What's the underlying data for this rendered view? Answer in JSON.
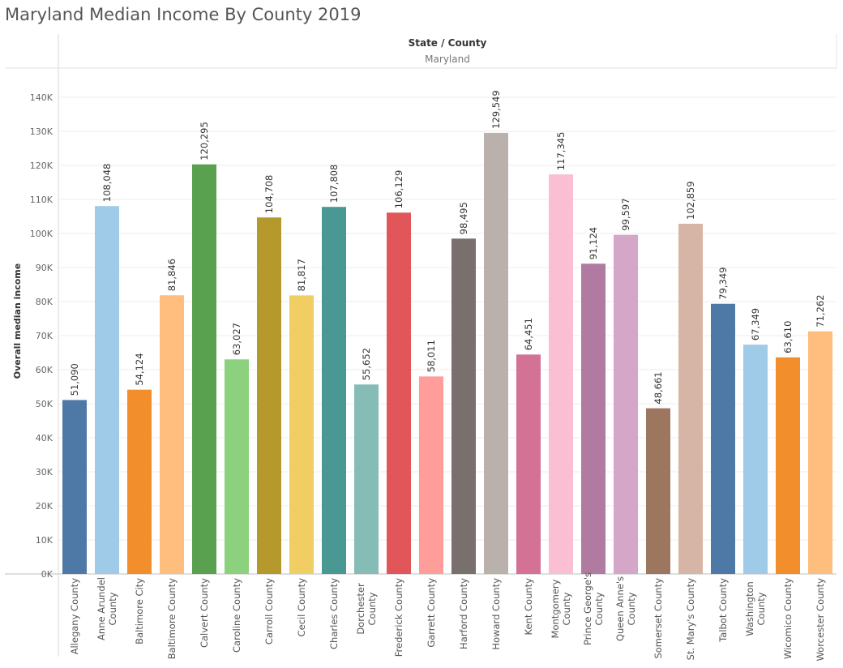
{
  "title": "Maryland Median Income By County 2019",
  "chart_data": {
    "type": "bar",
    "header_label": "State / County",
    "header_value": "Maryland",
    "ylabel": "Overall median income",
    "ylim": [
      0,
      140000
    ],
    "yticks": [
      0,
      10000,
      20000,
      30000,
      40000,
      50000,
      60000,
      70000,
      80000,
      90000,
      100000,
      110000,
      120000,
      130000,
      140000
    ],
    "ytick_labels": [
      "0K",
      "10K",
      "20K",
      "30K",
      "40K",
      "50K",
      "60K",
      "70K",
      "80K",
      "90K",
      "100K",
      "110K",
      "120K",
      "130K",
      "140K"
    ],
    "grid": true,
    "categories": [
      "Allegany County",
      "Anne Arundel County",
      "Baltimore City",
      "Baltimore County",
      "Calvert County",
      "Caroline County",
      "Carroll County",
      "Cecil County",
      "Charles County",
      "Dorchester County",
      "Frederick County",
      "Garrett County",
      "Harford County",
      "Howard County",
      "Kent County",
      "Montgomery County",
      "Prince George's County",
      "Queen Anne's County",
      "Somerset County",
      "St. Mary's County",
      "Talbot County",
      "Washington County",
      "Wicomico County",
      "Worcester County"
    ],
    "category_label_lines": [
      [
        "Allegany County"
      ],
      [
        "Anne Arundel",
        "County"
      ],
      [
        "Baltimore City"
      ],
      [
        "Baltimore County"
      ],
      [
        "Calvert County"
      ],
      [
        "Caroline County"
      ],
      [
        "Carroll County"
      ],
      [
        "Cecil County"
      ],
      [
        "Charles County"
      ],
      [
        "Dorchester",
        "County"
      ],
      [
        "Frederick County"
      ],
      [
        "Garrett County"
      ],
      [
        "Harford County"
      ],
      [
        "Howard County"
      ],
      [
        "Kent County"
      ],
      [
        "Montgomery",
        "County"
      ],
      [
        "Prince George's",
        "County"
      ],
      [
        "Queen Anne's",
        "County"
      ],
      [
        "Somerset County"
      ],
      [
        "St. Mary's County"
      ],
      [
        "Talbot County"
      ],
      [
        "Washington",
        "County"
      ],
      [
        "Wicomico County"
      ],
      [
        "Worcester County"
      ]
    ],
    "values": [
      51090,
      108048,
      54124,
      81846,
      120295,
      63027,
      104708,
      81817,
      107808,
      55652,
      106129,
      58011,
      98495,
      129549,
      64451,
      117345,
      91124,
      99597,
      48661,
      102859,
      79349,
      67349,
      63610,
      71262
    ],
    "value_labels": [
      "51,090",
      "108,048",
      "54,124",
      "81,846",
      "120,295",
      "63,027",
      "104,708",
      "81,817",
      "107,808",
      "55,652",
      "106,129",
      "58,011",
      "98,495",
      "129,549",
      "64,451",
      "117,345",
      "91,124",
      "99,597",
      "48,661",
      "102,859",
      "79,349",
      "67,349",
      "63,610",
      "71,262"
    ],
    "colors": [
      "#4e79a7",
      "#a0cbe8",
      "#f28e2b",
      "#ffbe7d",
      "#59a14f",
      "#8cd17d",
      "#b6992d",
      "#f1ce63",
      "#499894",
      "#86bcb6",
      "#e15759",
      "#ff9d9a",
      "#79706e",
      "#bab0ac",
      "#d37295",
      "#fabfd2",
      "#b07aa1",
      "#d4a6c8",
      "#9d7660",
      "#d7b5a6",
      "#4e79a7",
      "#a0cbe8",
      "#f28e2b",
      "#ffbe7d"
    ]
  }
}
